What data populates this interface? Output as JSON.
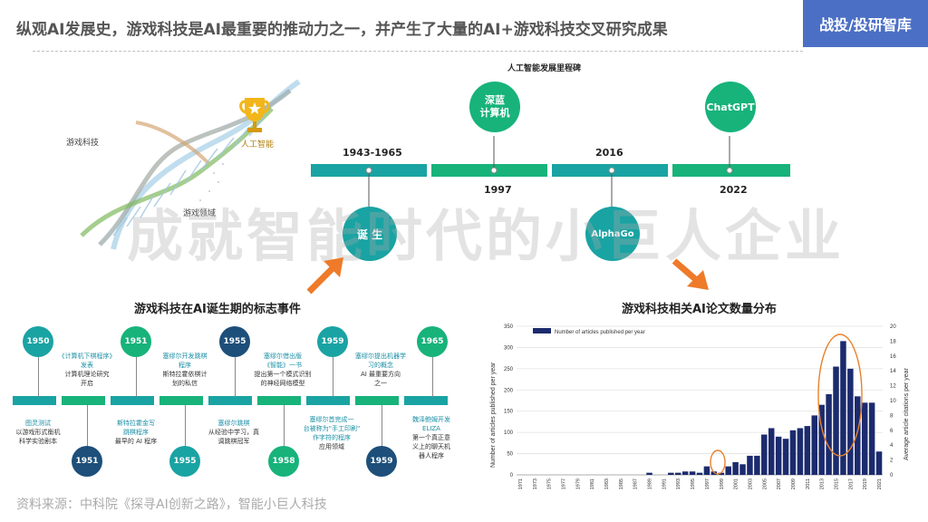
{
  "header": {
    "title": "纵观AI发展史，游戏科技是AI最重要的推动力之一，并产生了大量的AI+游戏科技交叉研究成果",
    "brand": "战投/投研智库"
  },
  "watermark": "成就智能时代的小巨人企业",
  "dna": {
    "label_game": "游戏科技",
    "label_ai": "人工智能",
    "label_extra": "游戏领域"
  },
  "milestones": {
    "title": "人工智能发展里程碑",
    "years": [
      "1943-1965",
      "1997",
      "2016",
      "2022"
    ],
    "items": [
      {
        "label": "深蓝\n计算机"
      },
      {
        "label": "ChatGPT"
      },
      {
        "label": "诞 生"
      },
      {
        "label": "AlphaGo"
      }
    ]
  },
  "events": {
    "title": "游戏科技在AI诞生期的标志事件",
    "top": [
      {
        "year": "1950",
        "head": "",
        "body": ""
      },
      {
        "year": "1951",
        "head": "",
        "body": ""
      },
      {
        "year": "1955",
        "head": "",
        "body": ""
      },
      {
        "year": "1959",
        "head": "",
        "body": ""
      },
      {
        "year": "1965",
        "head": "",
        "body": ""
      }
    ],
    "top_text": [
      {
        "head": "《计算机下棋程序》\n发表",
        "body": "计算机理论研究\n开启"
      },
      {
        "head": "塞缪尔开发跳棋\n程序",
        "body": "斯特拉霍依棋计\n划的私信"
      },
      {
        "head": "塞缪尔借出版\n《智能》一书",
        "body": "提出第一个模式识别\n的神经网络模型"
      },
      {
        "head": "塞缪尔提出机器学\n习的概念",
        "body": "AI 最重要方向\n之一"
      }
    ],
    "bottom": [
      {
        "year": "1951"
      },
      {
        "year": "1955"
      },
      {
        "year": "1958"
      },
      {
        "year": "1959"
      }
    ],
    "bottom_text": [
      {
        "head": "图灵测试",
        "body": "以游戏形式衡机\n科学实验剧本"
      },
      {
        "head": "斯特拉霍金写\n跳棋程序",
        "body": "最早的 AI 程序"
      },
      {
        "head": "塞缪尔跳棋",
        "body": "从经验中学习，真\n调跳棋冠军"
      },
      {
        "head": "塞缪尔首完成一\n台被称为\"手工印刷\"\n作字符的程序",
        "body": "应用领域"
      },
      {
        "head": "魏泽鲍姆开发\nELIZA",
        "body": "第一个真正意\n义上的聊天机\n器人程序"
      }
    ]
  },
  "chart_section_title": "游戏科技相关AI论文数量分布",
  "chart_data": {
    "type": "bar",
    "title": "",
    "legend": "Number of articles published per year",
    "legend_position": "top-left",
    "ylabel": "Number of articles published per year",
    "y2label": "Average article citations per year",
    "ylim": [
      0,
      350
    ],
    "y2lim": [
      0,
      20
    ],
    "yticks": [
      0,
      50,
      100,
      150,
      200,
      250,
      300,
      350
    ],
    "y2ticks": [
      0,
      2,
      4,
      6,
      8,
      10,
      12,
      14,
      16,
      18,
      20
    ],
    "xtick_labels": [
      "1971",
      "1973",
      "1975",
      "1977",
      "1979",
      "1981",
      "1983",
      "1985",
      "1987",
      "1989",
      "1991",
      "1993",
      "1995",
      "1997",
      "1999",
      "2001",
      "2003",
      "2005",
      "2007",
      "2009",
      "2011",
      "2013",
      "2015",
      "2017",
      "2019",
      "2021"
    ],
    "years": [
      1971,
      1972,
      1973,
      1974,
      1975,
      1976,
      1977,
      1978,
      1979,
      1980,
      1981,
      1982,
      1983,
      1984,
      1985,
      1986,
      1987,
      1988,
      1989,
      1990,
      1991,
      1992,
      1993,
      1994,
      1995,
      1996,
      1997,
      1998,
      1999,
      2000,
      2001,
      2002,
      2003,
      2004,
      2005,
      2006,
      2007,
      2008,
      2009,
      2010,
      2011,
      2012,
      2013,
      2014,
      2015,
      2016,
      2017,
      2018,
      2019,
      2020,
      2021
    ],
    "values": [
      0,
      0,
      0,
      0,
      0,
      0,
      0,
      0,
      0,
      0,
      0,
      0,
      0,
      0,
      0,
      0,
      0,
      0,
      5,
      0,
      0,
      5,
      5,
      8,
      8,
      5,
      20,
      8,
      5,
      20,
      30,
      25,
      45,
      45,
      95,
      110,
      90,
      85,
      105,
      110,
      115,
      140,
      165,
      190,
      255,
      315,
      250,
      185,
      170,
      170,
      55
    ],
    "grid": true,
    "bar_color": "#1c2b6e",
    "highlight_color": "#e8812c"
  }
}
